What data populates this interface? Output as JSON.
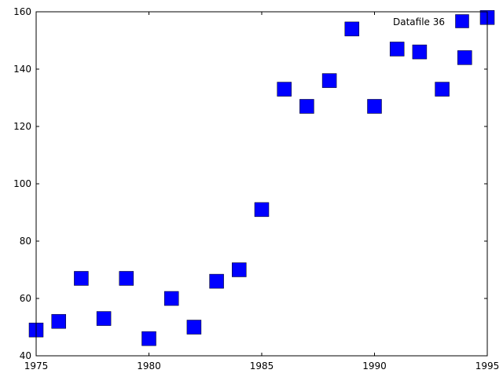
{
  "chart_data": {
    "type": "scatter",
    "title": "",
    "xlabel": "",
    "ylabel": "",
    "xlim": [
      1975,
      1995
    ],
    "ylim": [
      40,
      160
    ],
    "x_ticks": [
      1975,
      1980,
      1985,
      1990,
      1995
    ],
    "y_ticks": [
      40,
      60,
      80,
      100,
      120,
      140,
      160
    ],
    "grid": false,
    "legend_position": "top-right",
    "series": [
      {
        "name": "Datafile 36",
        "color": "#0000ff",
        "marker": "square",
        "points": [
          {
            "x": 1975,
            "y": 49
          },
          {
            "x": 1976,
            "y": 52
          },
          {
            "x": 1977,
            "y": 67
          },
          {
            "x": 1978,
            "y": 53
          },
          {
            "x": 1979,
            "y": 67
          },
          {
            "x": 1980,
            "y": 46
          },
          {
            "x": 1981,
            "y": 60
          },
          {
            "x": 1982,
            "y": 50
          },
          {
            "x": 1983,
            "y": 66
          },
          {
            "x": 1984,
            "y": 70
          },
          {
            "x": 1985,
            "y": 91
          },
          {
            "x": 1986,
            "y": 133
          },
          {
            "x": 1987,
            "y": 127
          },
          {
            "x": 1988,
            "y": 136
          },
          {
            "x": 1989,
            "y": 154
          },
          {
            "x": 1990,
            "y": 127
          },
          {
            "x": 1991,
            "y": 147
          },
          {
            "x": 1992,
            "y": 146
          },
          {
            "x": 1993,
            "y": 133
          },
          {
            "x": 1994,
            "y": 144
          },
          {
            "x": 1995,
            "y": 158
          }
        ]
      }
    ]
  }
}
